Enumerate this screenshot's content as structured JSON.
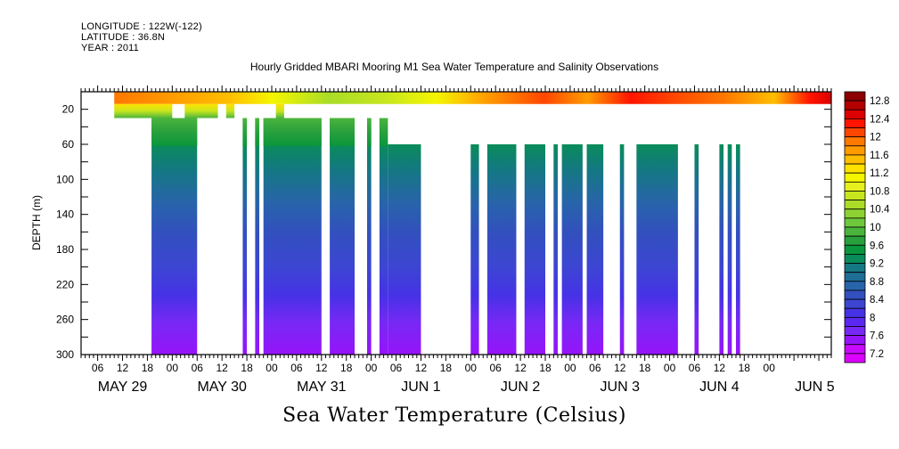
{
  "header": {
    "longitude": "LONGITUDE : 122W(-122)",
    "latitude": "LATITUDE : 36.8N",
    "year": "YEAR : 2011"
  },
  "chart_data": {
    "type": "heatmap",
    "title": "Hourly Gridded MBARI Mooring M1 Sea Water Temperature and Salinity Observations",
    "variable_label": "Sea Water Temperature (Celsius)",
    "ylabel": "DEPTH (m)",
    "xlabel": "",
    "y_axis": {
      "inverted": true,
      "ylim": [
        300,
        0
      ],
      "tick_labels": [
        "20",
        "60",
        "100",
        "140",
        "180",
        "220",
        "260",
        "300"
      ],
      "tick_values": [
        20,
        60,
        100,
        140,
        180,
        220,
        260,
        300
      ]
    },
    "x_axis": {
      "units": "hours since 2011-05-29 00:00",
      "xlim": [
        2,
        183
      ],
      "hour_ticks": [
        {
          "t": 6,
          "label": "06"
        },
        {
          "t": 12,
          "label": "12"
        },
        {
          "t": 18,
          "label": "18"
        },
        {
          "t": 24,
          "label": "00"
        },
        {
          "t": 30,
          "label": "06"
        },
        {
          "t": 36,
          "label": "12"
        },
        {
          "t": 42,
          "label": "18"
        },
        {
          "t": 48,
          "label": "00"
        },
        {
          "t": 54,
          "label": "06"
        },
        {
          "t": 60,
          "label": "12"
        },
        {
          "t": 66,
          "label": "18"
        },
        {
          "t": 72,
          "label": "00"
        },
        {
          "t": 78,
          "label": "06"
        },
        {
          "t": 84,
          "label": "12"
        },
        {
          "t": 90,
          "label": "18"
        },
        {
          "t": 96,
          "label": "00"
        },
        {
          "t": 102,
          "label": "06"
        },
        {
          "t": 108,
          "label": "12"
        },
        {
          "t": 114,
          "label": "18"
        },
        {
          "t": 120,
          "label": "00"
        },
        {
          "t": 126,
          "label": "06"
        },
        {
          "t": 132,
          "label": "12"
        },
        {
          "t": 138,
          "label": "18"
        },
        {
          "t": 144,
          "label": "00"
        },
        {
          "t": 150,
          "label": "06"
        },
        {
          "t": 156,
          "label": "12"
        },
        {
          "t": 162,
          "label": "18"
        },
        {
          "t": 168,
          "label": "00"
        }
      ],
      "date_labels": [
        {
          "t": 12,
          "label": "MAY 29"
        },
        {
          "t": 36,
          "label": "MAY 30"
        },
        {
          "t": 60,
          "label": "MAY 31"
        },
        {
          "t": 84,
          "label": "JUN  1"
        },
        {
          "t": 108,
          "label": "JUN  2"
        },
        {
          "t": 132,
          "label": "JUN  3"
        },
        {
          "t": 156,
          "label": "JUN  4"
        },
        {
          "t": 179,
          "label": "JUN  5"
        }
      ]
    },
    "colorbar": {
      "levels": [
        "12.8",
        "12.4",
        "12",
        "11.6",
        "11.2",
        "10.8",
        "10.4",
        "10",
        "9.6",
        "9.2",
        "8.8",
        "8.4",
        "8",
        "7.6",
        "7.2"
      ],
      "range": [
        7.0,
        13.0
      ],
      "colors": [
        "#8b0000",
        "#b40000",
        "#dc0000",
        "#ff1400",
        "#ff4600",
        "#ff7800",
        "#ff9b00",
        "#ffbe00",
        "#ffe100",
        "#f5f500",
        "#e6f01e",
        "#c8e61e",
        "#aadc28",
        "#8cd232",
        "#6ec83c",
        "#4bb43c",
        "#28a03c",
        "#0a963c",
        "#0a8c5a",
        "#147882",
        "#1e6e96",
        "#2864aa",
        "#3250be",
        "#3c46d2",
        "#4632e6",
        "#5a28f0",
        "#7828f5",
        "#9614fa",
        "#c80aff",
        "#dc00ff"
      ]
    },
    "series": [
      {
        "name": "surface (~0-10 m)",
        "segments": [
          [
            10,
            183
          ]
        ],
        "temperature_range": [
          10.2,
          12.8
        ]
      },
      {
        "name": "depth 20-30 m",
        "segments": [
          [
            10,
            24
          ],
          [
            27,
            35
          ],
          [
            37,
            39
          ],
          [
            49,
            51
          ]
        ],
        "temperature_range": [
          9.6,
          11.4
        ]
      },
      {
        "name": "depth 40-70 m",
        "segments": [
          [
            19,
            30
          ],
          [
            41,
            42
          ],
          [
            44,
            45
          ],
          [
            46,
            60
          ],
          [
            62,
            68
          ],
          [
            71,
            72
          ],
          [
            74,
            76
          ]
        ],
        "temperature_range": [
          8.6,
          10.2
        ]
      },
      {
        "name": "depth 80-300 m",
        "segments": [
          [
            19,
            30
          ],
          [
            41,
            42
          ],
          [
            44,
            45
          ],
          [
            46,
            60
          ],
          [
            62,
            68
          ],
          [
            71,
            72
          ],
          [
            74,
            76
          ],
          [
            76,
            84
          ],
          [
            96,
            98
          ],
          [
            100,
            107
          ],
          [
            109,
            114
          ],
          [
            116,
            117
          ],
          [
            118,
            123
          ],
          [
            124,
            128
          ],
          [
            132,
            133
          ],
          [
            136,
            146
          ],
          [
            150,
            151
          ],
          [
            156,
            157
          ],
          [
            158,
            159
          ],
          [
            160,
            161
          ]
        ],
        "surface_temp_at_80m": 8.8,
        "temp_at_300m": 7.3
      }
    ],
    "grid": false
  }
}
